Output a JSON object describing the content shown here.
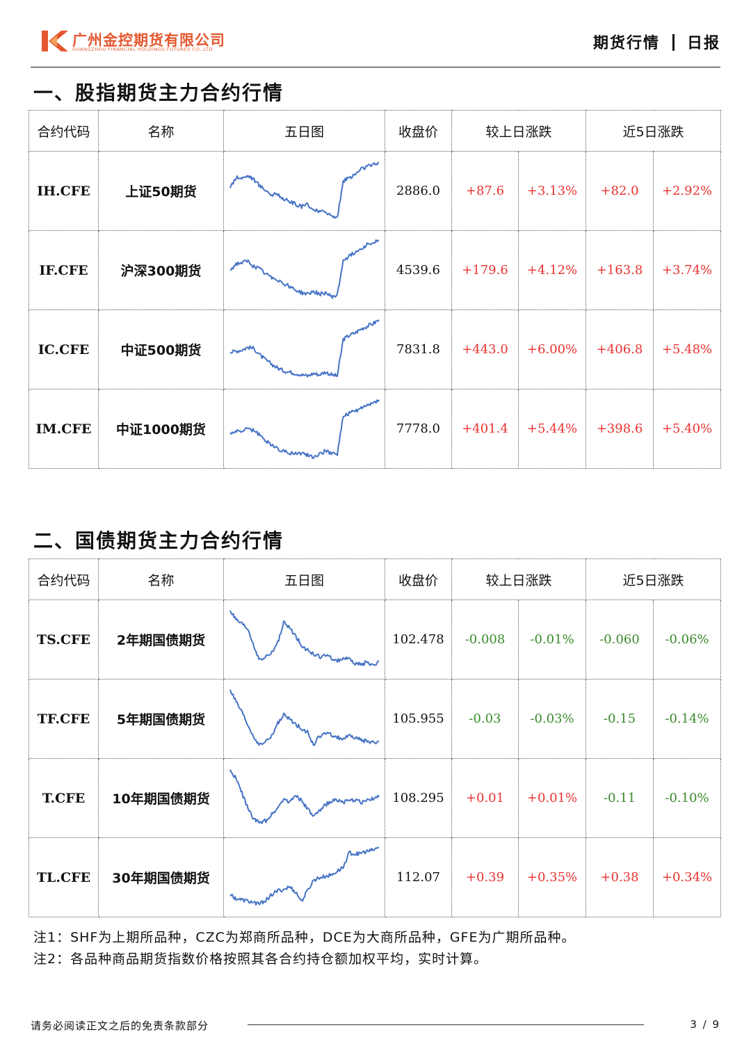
{
  "header": {
    "company_cn": "广州金控期货有限公司",
    "company_en": "GUANGZHOU FINANCIAL HOLDINGS FUTURES CO.,LTD",
    "doc_type": "期货行情",
    "doc_sub": "日报"
  },
  "colors": {
    "up": "#e8322f",
    "down": "#3a8a2c",
    "sparkline": "#4472c4",
    "brand": "#e4572e"
  },
  "section1": {
    "title": "一、股指期货主力合约行情",
    "columns": [
      "合约代码",
      "名称",
      "五日图",
      "收盘价",
      "较上日涨跌",
      "近5日涨跌"
    ],
    "rows": [
      {
        "code": "IH.CFE",
        "name": "上证50期货",
        "close": "2886.0",
        "chg": "+87.6",
        "chg_pct": "+3.13%",
        "chg5": "+82.0",
        "chg5_pct": "+2.92%",
        "dir1": "up",
        "dir5": "up",
        "trend": [
          0.55,
          0.72,
          0.7,
          0.74,
          0.68,
          0.58,
          0.52,
          0.44,
          0.46,
          0.38,
          0.34,
          0.3,
          0.26,
          0.3,
          0.22,
          0.18,
          0.2,
          0.12,
          0.1,
          0.66,
          0.7,
          0.76,
          0.84,
          0.88,
          0.9,
          0.94
        ]
      },
      {
        "code": "IF.CFE",
        "name": "沪深300期货",
        "close": "4539.6",
        "chg": "+179.6",
        "chg_pct": "+4.12%",
        "chg5": "+163.8",
        "chg5_pct": "+3.74%",
        "dir1": "up",
        "dir5": "up",
        "trend": [
          0.5,
          0.6,
          0.62,
          0.64,
          0.56,
          0.52,
          0.44,
          0.4,
          0.36,
          0.3,
          0.26,
          0.2,
          0.16,
          0.14,
          0.18,
          0.14,
          0.16,
          0.1,
          0.12,
          0.66,
          0.72,
          0.78,
          0.84,
          0.9,
          0.92,
          0.96
        ]
      },
      {
        "code": "IC.CFE",
        "name": "中证500期货",
        "close": "7831.8",
        "chg": "+443.0",
        "chg_pct": "+6.00%",
        "chg5": "+406.8",
        "chg5_pct": "+5.48%",
        "dir1": "up",
        "dir5": "up",
        "trend": [
          0.46,
          0.48,
          0.5,
          0.54,
          0.52,
          0.42,
          0.34,
          0.28,
          0.22,
          0.18,
          0.16,
          0.14,
          0.12,
          0.1,
          0.14,
          0.12,
          0.16,
          0.12,
          0.1,
          0.66,
          0.72,
          0.76,
          0.82,
          0.86,
          0.9,
          0.96
        ]
      },
      {
        "code": "IM.CFE",
        "name": "中证1000期货",
        "close": "7778.0",
        "chg": "+401.4",
        "chg_pct": "+5.44%",
        "chg5": "+398.6",
        "chg5_pct": "+5.40%",
        "dir1": "up",
        "dir5": "up",
        "trend": [
          0.44,
          0.46,
          0.48,
          0.5,
          0.48,
          0.4,
          0.32,
          0.26,
          0.2,
          0.16,
          0.14,
          0.12,
          0.14,
          0.1,
          0.08,
          0.12,
          0.16,
          0.14,
          0.12,
          0.7,
          0.74,
          0.78,
          0.82,
          0.86,
          0.9,
          0.95
        ]
      }
    ]
  },
  "section2": {
    "title": "二、国债期货主力合约行情",
    "columns": [
      "合约代码",
      "名称",
      "五日图",
      "收盘价",
      "较上日涨跌",
      "近5日涨跌"
    ],
    "rows": [
      {
        "code": "TS.CFE",
        "name": "2年期国债期货",
        "close": "102.478",
        "chg": "-0.008",
        "chg_pct": "-0.01%",
        "chg5": "-0.060",
        "chg5_pct": "-0.06%",
        "dir1": "down",
        "dir5": "down",
        "trend": [
          0.95,
          0.8,
          0.74,
          0.66,
          0.4,
          0.18,
          0.24,
          0.3,
          0.46,
          0.76,
          0.68,
          0.56,
          0.42,
          0.34,
          0.28,
          0.24,
          0.26,
          0.22,
          0.18,
          0.22,
          0.2,
          0.14,
          0.12,
          0.16,
          0.1,
          0.18
        ]
      },
      {
        "code": "TF.CFE",
        "name": "5年期国债期货",
        "close": "105.955",
        "chg": "-0.03",
        "chg_pct": "-0.03%",
        "chg5": "-0.15",
        "chg5_pct": "-0.14%",
        "dir1": "down",
        "dir5": "down",
        "trend": [
          0.95,
          0.76,
          0.6,
          0.4,
          0.22,
          0.1,
          0.16,
          0.24,
          0.44,
          0.56,
          0.5,
          0.42,
          0.36,
          0.3,
          0.1,
          0.24,
          0.28,
          0.26,
          0.22,
          0.2,
          0.24,
          0.22,
          0.18,
          0.16,
          0.14,
          0.16
        ]
      },
      {
        "code": "T.CFE",
        "name": "10年期国债期货",
        "close": "108.295",
        "chg": "+0.01",
        "chg_pct": "+0.01%",
        "chg5": "-0.11",
        "chg5_pct": "-0.10%",
        "dir1": "up",
        "dir5": "down",
        "trend": [
          0.94,
          0.8,
          0.58,
          0.34,
          0.18,
          0.12,
          0.16,
          0.26,
          0.36,
          0.5,
          0.44,
          0.56,
          0.46,
          0.34,
          0.22,
          0.3,
          0.4,
          0.46,
          0.48,
          0.44,
          0.46,
          0.48,
          0.44,
          0.46,
          0.5,
          0.52
        ]
      },
      {
        "code": "TL.CFE",
        "name": "30年期国债期货",
        "close": "112.07",
        "chg": "+0.39",
        "chg_pct": "+0.35%",
        "chg5": "+0.38",
        "chg5_pct": "+0.34%",
        "dir1": "up",
        "dir5": "up",
        "trend": [
          0.24,
          0.18,
          0.16,
          0.14,
          0.12,
          0.1,
          0.16,
          0.24,
          0.3,
          0.32,
          0.36,
          0.28,
          0.14,
          0.3,
          0.46,
          0.5,
          0.52,
          0.54,
          0.6,
          0.66,
          0.88,
          0.86,
          0.88,
          0.9,
          0.92,
          0.96
        ]
      }
    ]
  },
  "notes": [
    "注1：SHF为上期所品种，CZC为郑商所品种，DCE为大商所品种，GFE为广期所品种。",
    "注2：各品种商品期货指数价格按照其各合约持仓额加权平均，实时计算。"
  ],
  "footer": {
    "disclaimer": "请务必阅读正文之后的免责条款部分",
    "page": "3 / 9"
  }
}
